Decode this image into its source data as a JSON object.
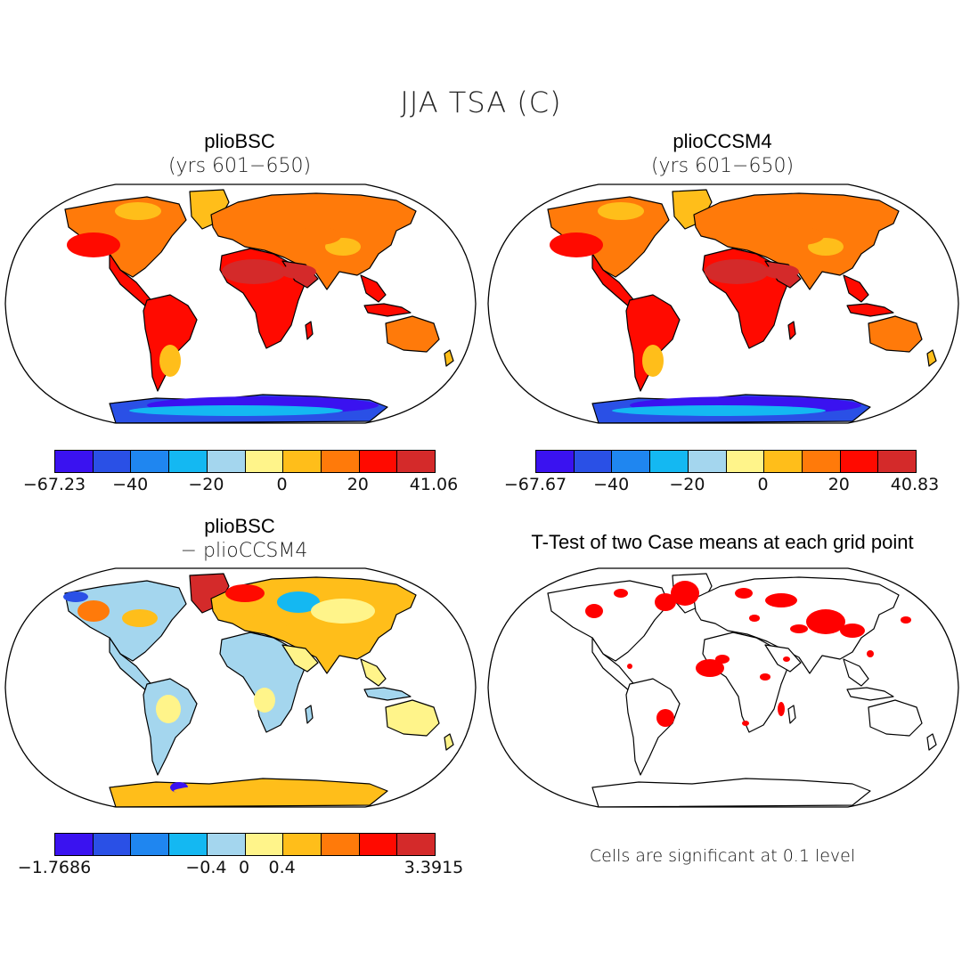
{
  "main_title": "JJA TSA (C)",
  "colors": [
    "#3a12f0",
    "#2a50e6",
    "#1f86f0",
    "#14b8f2",
    "#a4d6ee",
    "#fff48a",
    "#ffbe1a",
    "#ff7a0a",
    "#ff0a00",
    "#d42a2a"
  ],
  "significance_color": "#ff0000",
  "panels": [
    {
      "title": "plioBSC",
      "subtitle": "(yrs 601−650)",
      "colorbar": {
        "ticks": [
          "−67.23",
          "−40",
          "−20",
          "0",
          "20",
          "41.06"
        ]
      }
    },
    {
      "title": "plioCCSM4",
      "subtitle": "(yrs 601−650)",
      "colorbar": {
        "ticks": [
          "−67.67",
          "−40",
          "−20",
          "0",
          "20",
          "40.83"
        ]
      }
    },
    {
      "title": "plioBSC",
      "subtitle": "− plioCCSM4",
      "colorbar": {
        "ticks": [
          "−1.7686",
          "−0.4",
          "0",
          "0.4",
          "3.3915"
        ]
      }
    },
    {
      "title": "T-Test of two Case means at each grid point",
      "note": "Cells are significant at 0.1 level"
    }
  ]
}
